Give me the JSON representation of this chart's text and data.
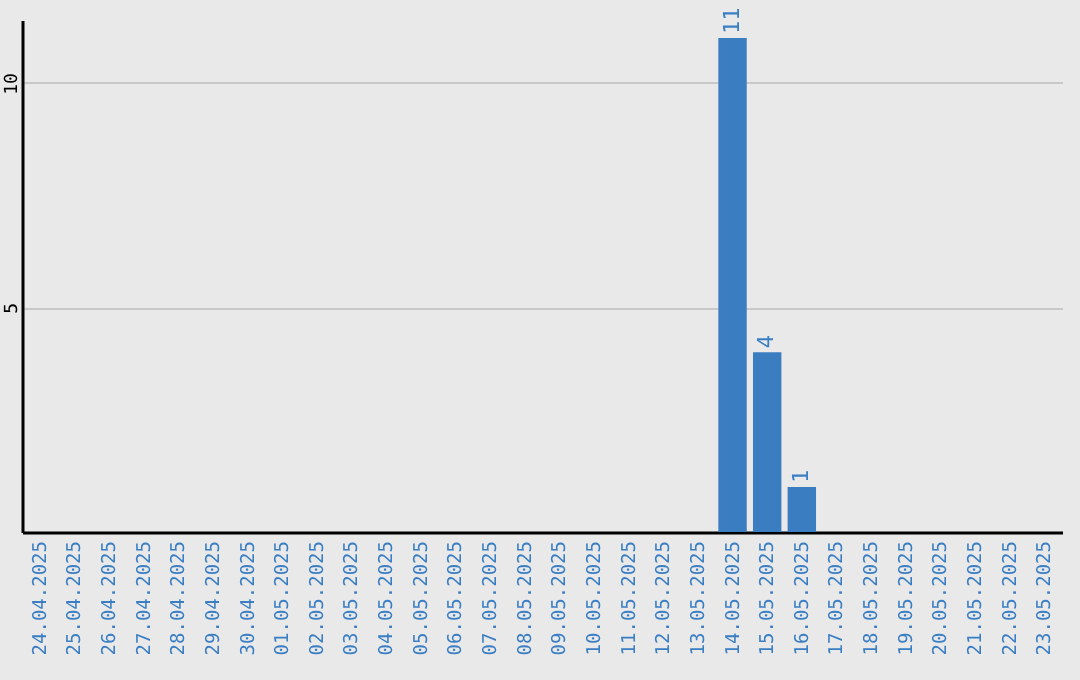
{
  "chart_data": {
    "type": "bar",
    "categories": [
      "24.04.2025",
      "25.04.2025",
      "26.04.2025",
      "27.04.2025",
      "28.04.2025",
      "29.04.2025",
      "30.04.2025",
      "01.05.2025",
      "02.05.2025",
      "03.05.2025",
      "04.05.2025",
      "05.05.2025",
      "06.05.2025",
      "07.05.2025",
      "08.05.2025",
      "09.05.2025",
      "10.05.2025",
      "11.05.2025",
      "12.05.2025",
      "13.05.2025",
      "14.05.2025",
      "15.05.2025",
      "16.05.2025",
      "17.05.2025",
      "18.05.2025",
      "19.05.2025",
      "20.05.2025",
      "21.05.2025",
      "22.05.2025",
      "23.05.2025"
    ],
    "values": [
      0,
      0,
      0,
      0,
      0,
      0,
      0,
      0,
      0,
      0,
      0,
      0,
      0,
      0,
      0,
      0,
      0,
      0,
      0,
      0,
      11,
      4,
      1,
      0,
      0,
      0,
      0,
      0,
      0,
      0
    ],
    "value_labels": [
      null,
      null,
      null,
      null,
      null,
      null,
      null,
      null,
      null,
      null,
      null,
      null,
      null,
      null,
      null,
      null,
      null,
      null,
      null,
      null,
      "11",
      "4",
      "1",
      null,
      null,
      null,
      null,
      null,
      null,
      null
    ],
    "color": "#3b7dc1",
    "ylim": [
      0,
      11.4
    ],
    "yticks": [
      5,
      10
    ],
    "grid": "y"
  }
}
